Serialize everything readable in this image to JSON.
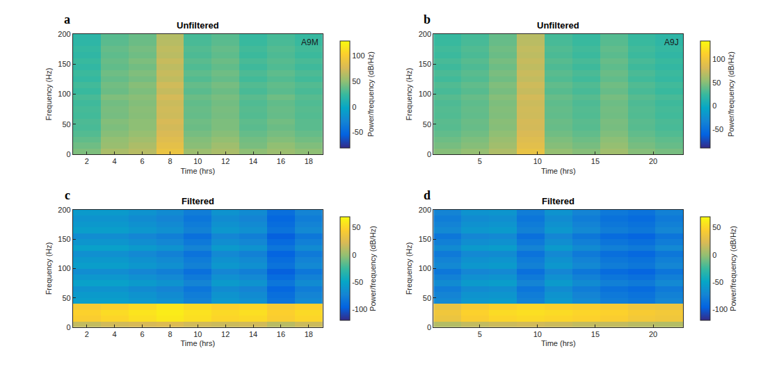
{
  "chart_data": [
    {
      "type": "heatmap",
      "panel": "a",
      "title": "Unfiltered",
      "annotation": "A9M",
      "x_label": "Time (hrs)",
      "y_label": "Frequency (Hz)",
      "x": [
        2,
        4,
        6,
        8,
        10,
        12,
        14,
        16,
        18
      ],
      "y": [
        5,
        15,
        25,
        35,
        45,
        55,
        65,
        75,
        85,
        95,
        105,
        115,
        125,
        135,
        145,
        155,
        165,
        175,
        185,
        195
      ],
      "z": [
        [
          45,
          60,
          65,
          90,
          55,
          60,
          50,
          55,
          50
        ],
        [
          41,
          54,
          61,
          86,
          49,
          56,
          44,
          51,
          46
        ],
        [
          37,
          52,
          57,
          82,
          47,
          52,
          42,
          47,
          42
        ],
        [
          33,
          48,
          53,
          78,
          43,
          48,
          38,
          43,
          38
        ],
        [
          30,
          45,
          50,
          75,
          40,
          45,
          35,
          40,
          35
        ],
        [
          31,
          47,
          50,
          77,
          41,
          45,
          36,
          42,
          35
        ],
        [
          28,
          43,
          48,
          73,
          38,
          43,
          33,
          38,
          33
        ],
        [
          29,
          44,
          49,
          74,
          39,
          44,
          34,
          39,
          34
        ],
        [
          27,
          42,
          47,
          72,
          37,
          42,
          32,
          37,
          32
        ],
        [
          30,
          46,
          49,
          76,
          40,
          44,
          35,
          41,
          34
        ],
        [
          25,
          40,
          45,
          70,
          35,
          40,
          30,
          35,
          30
        ],
        [
          28,
          42,
          48,
          74,
          38,
          43,
          33,
          37,
          33
        ],
        [
          23,
          38,
          43,
          68,
          33,
          38,
          28,
          33,
          28
        ],
        [
          26,
          41,
          46,
          71,
          36,
          41,
          31,
          36,
          31
        ],
        [
          22,
          37,
          42,
          67,
          32,
          37,
          27,
          32,
          27
        ],
        [
          25,
          39,
          45,
          71,
          35,
          40,
          30,
          34,
          30
        ],
        [
          21,
          36,
          41,
          66,
          31,
          36,
          26,
          31,
          26
        ],
        [
          23,
          38,
          43,
          68,
          33,
          38,
          28,
          33,
          28
        ],
        [
          20,
          35,
          40,
          65,
          30,
          35,
          25,
          30,
          25
        ],
        [
          19,
          34,
          39,
          64,
          29,
          34,
          24,
          29,
          24
        ]
      ],
      "xlim": [
        1,
        19
      ],
      "xticks": [
        2,
        4,
        6,
        8,
        10,
        12,
        14,
        16,
        18
      ],
      "ylim": [
        0,
        200
      ],
      "yticks": [
        0,
        50,
        100,
        150,
        200
      ],
      "colorbar": {
        "label": "Power/frequency (dB/Hz)",
        "zlim": [
          -80,
          130
        ],
        "ticks": [
          -50,
          0,
          50,
          100
        ]
      }
    },
    {
      "type": "heatmap",
      "panel": "b",
      "title": "Unfiltered",
      "annotation": "A9J",
      "x_label": "Time (hrs)",
      "y_label": "Frequency (Hz)",
      "x": [
        2.2,
        4.6,
        7.0,
        9.4,
        11.8,
        14.2,
        16.6,
        19.0,
        21.4
      ],
      "y": [
        5,
        15,
        25,
        35,
        45,
        55,
        65,
        75,
        85,
        95,
        105,
        115,
        125,
        135,
        145,
        155,
        165,
        175,
        185,
        195
      ],
      "z": [
        [
          50,
          55,
          65,
          95,
          55,
          50,
          60,
          50,
          45
        ],
        [
          45,
          50,
          60,
          90,
          50,
          45,
          55,
          45,
          40
        ],
        [
          42,
          47,
          57,
          87,
          47,
          42,
          52,
          42,
          37
        ],
        [
          38,
          43,
          53,
          83,
          43,
          38,
          48,
          38,
          33
        ],
        [
          35,
          40,
          50,
          80,
          40,
          35,
          45,
          35,
          30
        ],
        [
          36,
          41,
          51,
          81,
          41,
          36,
          46,
          36,
          31
        ],
        [
          33,
          38,
          48,
          78,
          38,
          33,
          43,
          33,
          28
        ],
        [
          34,
          39,
          49,
          79,
          39,
          34,
          44,
          34,
          29
        ],
        [
          32,
          37,
          47,
          77,
          37,
          32,
          42,
          32,
          27
        ],
        [
          35,
          40,
          50,
          80,
          40,
          35,
          45,
          35,
          30
        ],
        [
          30,
          35,
          45,
          75,
          35,
          30,
          40,
          30,
          25
        ],
        [
          33,
          38,
          48,
          78,
          38,
          33,
          43,
          33,
          28
        ],
        [
          28,
          33,
          43,
          73,
          33,
          28,
          38,
          28,
          23
        ],
        [
          31,
          36,
          46,
          76,
          36,
          31,
          41,
          31,
          26
        ],
        [
          27,
          32,
          42,
          72,
          32,
          27,
          37,
          27,
          22
        ],
        [
          30,
          35,
          45,
          75,
          35,
          30,
          40,
          30,
          25
        ],
        [
          26,
          31,
          41,
          71,
          31,
          26,
          36,
          26,
          21
        ],
        [
          28,
          33,
          43,
          73,
          33,
          28,
          38,
          28,
          23
        ],
        [
          25,
          30,
          40,
          70,
          30,
          25,
          35,
          25,
          20
        ],
        [
          24,
          29,
          39,
          69,
          29,
          24,
          34,
          24,
          19
        ]
      ],
      "xlim": [
        1,
        22.6
      ],
      "xticks": [
        5,
        10,
        15,
        20
      ],
      "ylim": [
        0,
        200
      ],
      "yticks": [
        0,
        50,
        100,
        150,
        200
      ],
      "colorbar": {
        "label": "Power/frequency (dB/Hz)",
        "zlim": [
          -90,
          140
        ],
        "ticks": [
          -50,
          0,
          50,
          100
        ]
      }
    },
    {
      "type": "heatmap",
      "panel": "c",
      "title": "Filtered",
      "x_label": "Time (hrs)",
      "y_label": "Frequency (Hz)",
      "x": [
        2,
        4,
        6,
        8,
        10,
        12,
        14,
        16,
        18
      ],
      "y": [
        5,
        15,
        25,
        35,
        45,
        55,
        65,
        75,
        85,
        95,
        105,
        115,
        125,
        135,
        145,
        155,
        165,
        175,
        185,
        195
      ],
      "z": [
        [
          15,
          20,
          22,
          25,
          20,
          18,
          20,
          12,
          18
        ],
        [
          45,
          50,
          55,
          60,
          55,
          50,
          52,
          45,
          50
        ],
        [
          48,
          53,
          58,
          62,
          57,
          52,
          55,
          47,
          52
        ],
        [
          42,
          47,
          52,
          58,
          52,
          47,
          50,
          42,
          47
        ],
        [
          -55,
          -55,
          -60,
          -65,
          -75,
          -60,
          -65,
          -85,
          -70
        ],
        [
          -58,
          -58,
          -63,
          -68,
          -78,
          -63,
          -68,
          -88,
          -73
        ],
        [
          -63,
          -63,
          -68,
          -73,
          -83,
          -68,
          -73,
          -93,
          -78
        ],
        [
          -53,
          -53,
          -58,
          -63,
          -73,
          -58,
          -63,
          -83,
          -68
        ],
        [
          -60,
          -60,
          -65,
          -70,
          -80,
          -65,
          -70,
          -90,
          -75
        ],
        [
          -67,
          -67,
          -72,
          -77,
          -87,
          -72,
          -77,
          -97,
          -82
        ],
        [
          -55,
          -55,
          -60,
          -65,
          -75,
          -60,
          -65,
          -85,
          -70
        ],
        [
          -59,
          -59,
          -64,
          -69,
          -79,
          -64,
          -69,
          -89,
          -74
        ],
        [
          -65,
          -65,
          -70,
          -75,
          -85,
          -70,
          -75,
          -95,
          -80
        ],
        [
          -53,
          -53,
          -58,
          -63,
          -73,
          -58,
          -63,
          -83,
          -68
        ],
        [
          -61,
          -61,
          -66,
          -71,
          -81,
          -66,
          -71,
          -91,
          -76
        ],
        [
          -67,
          -67,
          -72,
          -77,
          -87,
          -72,
          -77,
          -97,
          -82
        ],
        [
          -55,
          -55,
          -60,
          -65,
          -75,
          -60,
          -65,
          -85,
          -70
        ],
        [
          -59,
          -59,
          -64,
          -69,
          -79,
          -64,
          -69,
          -89,
          -74
        ],
        [
          -63,
          -63,
          -68,
          -73,
          -83,
          -68,
          -73,
          -93,
          -78
        ],
        [
          -58,
          -58,
          -63,
          -68,
          -78,
          -63,
          -68,
          -88,
          -73
        ]
      ],
      "xlim": [
        1,
        19
      ],
      "xticks": [
        2,
        4,
        6,
        8,
        10,
        12,
        14,
        16,
        18
      ],
      "ylim": [
        0,
        200
      ],
      "yticks": [
        0,
        50,
        100,
        150,
        200
      ],
      "colorbar": {
        "label": "Power/frequency (dB/Hz)",
        "zlim": [
          -120,
          70
        ],
        "ticks": [
          -100,
          -50,
          0,
          50
        ]
      }
    },
    {
      "type": "heatmap",
      "panel": "d",
      "title": "Filtered",
      "x_label": "Time (hrs)",
      "y_label": "Frequency (Hz)",
      "x": [
        2.2,
        4.6,
        7.0,
        9.4,
        11.8,
        14.2,
        16.6,
        19.0,
        21.4
      ],
      "y": [
        5,
        15,
        25,
        35,
        45,
        55,
        65,
        75,
        85,
        95,
        105,
        115,
        125,
        135,
        145,
        155,
        165,
        175,
        185,
        195
      ],
      "z": [
        [
          10,
          15,
          18,
          20,
          18,
          15,
          15,
          12,
          10
        ],
        [
          35,
          45,
          50,
          52,
          50,
          48,
          45,
          40,
          38
        ],
        [
          38,
          48,
          53,
          55,
          53,
          50,
          48,
          43,
          40
        ],
        [
          33,
          42,
          47,
          50,
          47,
          45,
          42,
          37,
          35
        ],
        [
          -70,
          -60,
          -58,
          -75,
          -60,
          -70,
          -78,
          -82,
          -72
        ],
        [
          -73,
          -63,
          -61,
          -78,
          -63,
          -73,
          -81,
          -85,
          -75
        ],
        [
          -78,
          -68,
          -66,
          -83,
          -68,
          -78,
          -86,
          -90,
          -80
        ],
        [
          -68,
          -58,
          -56,
          -73,
          -58,
          -68,
          -76,
          -80,
          -70
        ],
        [
          -75,
          -65,
          -63,
          -80,
          -65,
          -75,
          -83,
          -87,
          -77
        ],
        [
          -82,
          -72,
          -70,
          -87,
          -72,
          -82,
          -90,
          -94,
          -84
        ],
        [
          -70,
          -60,
          -58,
          -75,
          -60,
          -70,
          -78,
          -82,
          -72
        ],
        [
          -74,
          -64,
          -62,
          -79,
          -64,
          -74,
          -82,
          -86,
          -76
        ],
        [
          -80,
          -70,
          -68,
          -85,
          -70,
          -80,
          -88,
          -92,
          -82
        ],
        [
          -68,
          -58,
          -56,
          -73,
          -58,
          -68,
          -76,
          -80,
          -70
        ],
        [
          -76,
          -66,
          -64,
          -81,
          -66,
          -76,
          -84,
          -88,
          -78
        ],
        [
          -82,
          -72,
          -70,
          -87,
          -72,
          -82,
          -90,
          -94,
          -84
        ],
        [
          -70,
          -60,
          -58,
          -75,
          -60,
          -70,
          -78,
          -82,
          -72
        ],
        [
          -74,
          -64,
          -62,
          -79,
          -64,
          -74,
          -82,
          -86,
          -76
        ],
        [
          -78,
          -68,
          -66,
          -83,
          -68,
          -78,
          -86,
          -90,
          -80
        ],
        [
          -73,
          -63,
          -61,
          -78,
          -63,
          -73,
          -81,
          -85,
          -75
        ]
      ],
      "xlim": [
        1,
        22.6
      ],
      "xticks": [
        5,
        10,
        15,
        20
      ],
      "ylim": [
        0,
        200
      ],
      "yticks": [
        0,
        50,
        100,
        150,
        200
      ],
      "colorbar": {
        "label": "Power/frequency (dB/Hz)",
        "zlim": [
          -120,
          70
        ],
        "ticks": [
          -100,
          -50,
          0,
          50
        ]
      }
    }
  ]
}
